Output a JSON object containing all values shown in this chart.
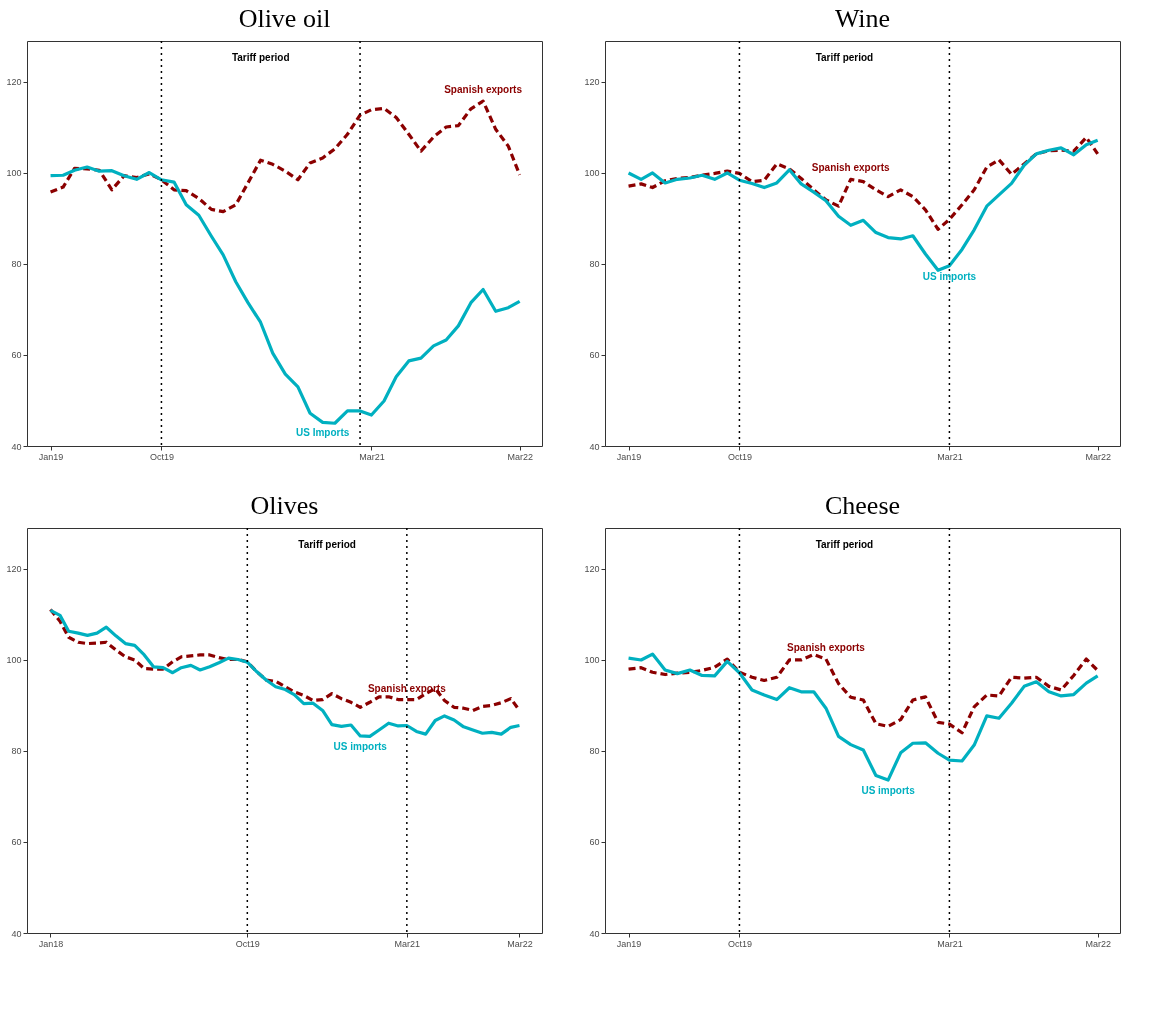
{
  "chart_data": [
    {
      "type": "line",
      "title": "Olive oil",
      "grid": false,
      "x": [
        "2019-01",
        "2019-02",
        "2019-03",
        "2019-04",
        "2019-05",
        "2019-06",
        "2019-07",
        "2019-08",
        "2019-09",
        "2019-10",
        "2019-11",
        "2019-12",
        "2020-01",
        "2020-02",
        "2020-03",
        "2020-04",
        "2020-05",
        "2020-06",
        "2020-07",
        "2020-08",
        "2020-09",
        "2020-10",
        "2020-11",
        "2020-12",
        "2021-01",
        "2021-02",
        "2021-03",
        "2021-04",
        "2021-05",
        "2021-06",
        "2021-07",
        "2021-08",
        "2021-09",
        "2021-10",
        "2021-11",
        "2021-12",
        "2022-01",
        "2022-02",
        "2022-03"
      ],
      "xlim": [
        "2018-11-04",
        "2022-04-25"
      ],
      "xticks": [
        {
          "value": "2019-01",
          "label": "Jan19"
        },
        {
          "value": "2019-10",
          "label": "Oct19"
        },
        {
          "value": "2021-03",
          "label": "Mar21"
        },
        {
          "value": "2022-03",
          "label": "Mar22"
        }
      ],
      "ylim": [
        40,
        129
      ],
      "yticks": [
        40,
        60,
        80,
        100,
        120
      ],
      "series": [
        {
          "color": "#8b0000",
          "line_style": "dashed",
          "values": [
            95.8,
            96.9,
            101.0,
            100.9,
            100.6,
            96.3,
            99.4,
            99.0,
            99.8,
            98.5,
            96.3,
            96.1,
            94.4,
            92.0,
            91.5,
            93.0,
            97.8,
            102.8,
            101.9,
            100.4,
            98.5,
            102.2,
            103.3,
            105.3,
            108.5,
            112.7,
            113.9,
            114.2,
            112.2,
            108.5,
            104.8,
            107.9,
            110.1,
            110.4,
            114.1,
            115.8,
            109.6,
            105.9,
            99.6
          ]
        },
        {
          "color": "#00b0c0",
          "line_style": "solid",
          "values": [
            99.4,
            99.5,
            100.6,
            101.3,
            100.4,
            100.5,
            99.4,
            98.6,
            100.1,
            98.5,
            98.0,
            93.0,
            90.7,
            86.1,
            82.0,
            76.1,
            71.5,
            67.2,
            60.4,
            55.8,
            53.0,
            47.2,
            45.2,
            45.0,
            47.7,
            47.7,
            46.8,
            49.9,
            55.2,
            58.7,
            59.3,
            62.0,
            63.3,
            66.4,
            71.5,
            74.4,
            69.6,
            70.4,
            71.8
          ]
        }
      ],
      "ref_lines": [
        {
          "axis": "x",
          "value": "2019-10",
          "line_style": "dotted",
          "color": "#000000"
        },
        {
          "axis": "x",
          "value": "2021-02",
          "line_style": "dotted",
          "color": "#000000"
        }
      ],
      "annotations": [
        "Tariff period",
        {
          "text": "Spanish exports",
          "x": "2021-12",
          "y": 115.8
        },
        {
          "text": "US Imports",
          "x": "2020-11",
          "y": 45.2
        }
      ]
    },
    {
      "type": "line",
      "title": "Wine",
      "grid": false,
      "x": [
        "2019-01",
        "2019-02",
        "2019-03",
        "2019-04",
        "2019-05",
        "2019-06",
        "2019-07",
        "2019-08",
        "2019-09",
        "2019-10",
        "2019-11",
        "2019-12",
        "2020-01",
        "2020-02",
        "2020-03",
        "2020-04",
        "2020-05",
        "2020-06",
        "2020-07",
        "2020-08",
        "2020-09",
        "2020-10",
        "2020-11",
        "2020-12",
        "2021-01",
        "2021-02",
        "2021-03",
        "2021-04",
        "2021-05",
        "2021-06",
        "2021-07",
        "2021-08",
        "2021-09",
        "2021-10",
        "2021-11",
        "2021-12",
        "2022-01",
        "2022-02",
        "2022-03"
      ],
      "xlim": [
        "2018-11-04",
        "2022-04-25"
      ],
      "xticks": [
        {
          "value": "2019-01",
          "label": "Jan19"
        },
        {
          "value": "2019-10",
          "label": "Oct19"
        },
        {
          "value": "2021-03",
          "label": "Mar21"
        },
        {
          "value": "2022-03",
          "label": "Mar22"
        }
      ],
      "ylim": [
        40,
        129
      ],
      "yticks": [
        40,
        60,
        80,
        100,
        120
      ],
      "series": [
        {
          "color": "#8b0000",
          "line_style": "dashed",
          "values": [
            97.1,
            97.6,
            96.8,
            98.3,
            98.8,
            99.0,
            99.5,
            99.9,
            100.4,
            99.9,
            98.1,
            98.4,
            102.0,
            100.9,
            98.8,
            96.3,
            94.1,
            92.7,
            98.6,
            98.1,
            96.3,
            94.8,
            96.3,
            94.8,
            91.9,
            87.6,
            89.8,
            93.0,
            96.3,
            101.3,
            102.9,
            99.7,
            102.0,
            104.2,
            104.9,
            105.0,
            104.8,
            107.8,
            104.2
          ]
        },
        {
          "color": "#00b0c0",
          "line_style": "solid",
          "values": [
            100.0,
            98.6,
            100.0,
            97.8,
            98.6,
            98.9,
            99.5,
            98.6,
            100.0,
            98.4,
            97.7,
            96.8,
            97.8,
            100.7,
            97.6,
            95.8,
            93.9,
            90.5,
            88.5,
            89.6,
            86.9,
            85.8,
            85.5,
            86.2,
            82.2,
            78.6,
            79.6,
            83.2,
            87.5,
            92.7,
            95.2,
            97.7,
            101.7,
            104.2,
            105.0,
            105.5,
            104.0,
            106.2,
            107.2
          ]
        }
      ],
      "ref_lines": [
        {
          "axis": "x",
          "value": "2019-10",
          "line_style": "dotted",
          "color": "#000000"
        },
        {
          "axis": "x",
          "value": "2021-03",
          "line_style": "dotted",
          "color": "#000000"
        }
      ],
      "annotations": [
        "Tariff period",
        {
          "text": "Spanish exports",
          "x": "2020-07",
          "y": 98.6
        },
        {
          "text": "US imports",
          "x": "2021-03",
          "y": 79.6
        }
      ]
    },
    {
      "type": "line",
      "title": "Olives",
      "grid": false,
      "x": [
        "2018-01",
        "2018-02",
        "2018-03",
        "2018-04",
        "2018-05",
        "2018-06",
        "2018-07",
        "2018-08",
        "2018-09",
        "2018-10",
        "2018-11",
        "2018-12",
        "2019-01",
        "2019-02",
        "2019-03",
        "2019-04",
        "2019-05",
        "2019-06",
        "2019-07",
        "2019-08",
        "2019-09",
        "2019-10",
        "2019-11",
        "2019-12",
        "2020-01",
        "2020-02",
        "2020-03",
        "2020-04",
        "2020-05",
        "2020-06",
        "2020-07",
        "2020-08",
        "2020-09",
        "2020-10",
        "2020-11",
        "2020-12",
        "2021-01",
        "2021-02",
        "2021-03",
        "2021-04",
        "2021-05",
        "2021-06",
        "2021-07",
        "2021-08",
        "2021-09",
        "2021-10",
        "2021-11",
        "2021-12",
        "2022-01",
        "2022-02",
        "2022-03"
      ],
      "xlim": [
        "2017-10-17",
        "2022-05-13"
      ],
      "xticks": [
        {
          "value": "2018-01",
          "label": "Jan18"
        },
        {
          "value": "2019-10",
          "label": "Oct19"
        },
        {
          "value": "2021-03",
          "label": "Mar21"
        },
        {
          "value": "2022-03",
          "label": "Mar22"
        }
      ],
      "ylim": [
        40,
        129
      ],
      "yticks": [
        40,
        60,
        80,
        100,
        120
      ],
      "series": [
        {
          "color": "#8b0000",
          "line_style": "dashed",
          "values": [
            111.1,
            108.5,
            105.0,
            103.9,
            103.6,
            103.7,
            103.9,
            102.2,
            100.7,
            100.0,
            98.1,
            98.0,
            98.0,
            99.6,
            100.7,
            100.9,
            101.1,
            101.1,
            100.5,
            100.1,
            100.1,
            99.6,
            97.4,
            95.6,
            95.3,
            94.1,
            93.0,
            92.2,
            91.1,
            91.3,
            92.6,
            91.5,
            90.7,
            89.6,
            90.7,
            91.9,
            91.9,
            91.3,
            91.3,
            91.3,
            92.6,
            93.7,
            91.1,
            89.6,
            89.4,
            88.9,
            89.8,
            90.0,
            90.6,
            91.5,
            88.9
          ]
        },
        {
          "color": "#00b0c0",
          "line_style": "solid",
          "values": [
            110.9,
            109.8,
            106.3,
            105.9,
            105.4,
            105.9,
            107.2,
            105.3,
            103.6,
            103.2,
            101.1,
            98.5,
            98.3,
            97.2,
            98.3,
            98.8,
            97.8,
            98.5,
            99.4,
            100.4,
            100.1,
            99.5,
            97.4,
            95.6,
            94.1,
            93.5,
            92.4,
            90.4,
            90.5,
            88.9,
            85.8,
            85.4,
            85.7,
            83.3,
            83.2,
            84.6,
            86.1,
            85.5,
            85.6,
            84.3,
            83.7,
            86.7,
            87.7,
            86.8,
            85.3,
            84.6,
            83.9,
            84.1,
            83.7,
            85.2,
            85.6
          ]
        }
      ],
      "ref_lines": [
        {
          "axis": "x",
          "value": "2019-10",
          "line_style": "dotted",
          "color": "#000000"
        },
        {
          "axis": "x",
          "value": "2021-03",
          "line_style": "dotted",
          "color": "#000000"
        }
      ],
      "annotations": [
        "Tariff period",
        {
          "text": "Spanish exports",
          "x": "2021-03",
          "y": 91.3
        },
        {
          "text": "US imports",
          "x": "2020-10",
          "y": 83.3
        }
      ]
    },
    {
      "type": "line",
      "title": "Cheese",
      "grid": false,
      "x": [
        "2019-01",
        "2019-02",
        "2019-03",
        "2019-04",
        "2019-05",
        "2019-06",
        "2019-07",
        "2019-08",
        "2019-09",
        "2019-10",
        "2019-11",
        "2019-12",
        "2020-01",
        "2020-02",
        "2020-03",
        "2020-04",
        "2020-05",
        "2020-06",
        "2020-07",
        "2020-08",
        "2020-09",
        "2020-10",
        "2020-11",
        "2020-12",
        "2021-01",
        "2021-02",
        "2021-03",
        "2021-04",
        "2021-05",
        "2021-06",
        "2021-07",
        "2021-08",
        "2021-09",
        "2021-10",
        "2021-11",
        "2021-12",
        "2022-01",
        "2022-02",
        "2022-03"
      ],
      "xlim": [
        "2018-11-04",
        "2022-04-25"
      ],
      "xticks": [
        {
          "value": "2019-01",
          "label": "Jan19"
        },
        {
          "value": "2019-10",
          "label": "Oct19"
        },
        {
          "value": "2021-03",
          "label": "Mar21"
        },
        {
          "value": "2022-03",
          "label": "Mar22"
        }
      ],
      "ylim": [
        40,
        129
      ],
      "yticks": [
        40,
        60,
        80,
        100,
        120
      ],
      "series": [
        {
          "color": "#8b0000",
          "line_style": "dashed",
          "values": [
            98.0,
            98.3,
            97.3,
            96.8,
            97.1,
            97.3,
            97.7,
            98.4,
            100.2,
            97.3,
            96.2,
            95.5,
            96.2,
            100.0,
            100.0,
            101.2,
            100.2,
            94.8,
            91.8,
            91.2,
            86.0,
            85.4,
            86.9,
            91.2,
            91.9,
            86.3,
            85.9,
            84.0,
            89.7,
            92.3,
            92.1,
            96.2,
            96.0,
            96.2,
            94.2,
            93.4,
            96.6,
            100.2,
            97.7
          ]
        },
        {
          "color": "#00b0c0",
          "line_style": "solid",
          "values": [
            100.4,
            100.0,
            101.3,
            97.8,
            97.0,
            97.8,
            96.6,
            96.5,
            99.7,
            97.2,
            93.4,
            92.3,
            91.3,
            93.9,
            93.0,
            93.0,
            89.4,
            83.2,
            81.4,
            80.2,
            74.6,
            73.6,
            79.6,
            81.7,
            81.8,
            79.5,
            78.0,
            77.8,
            81.3,
            87.7,
            87.2,
            90.5,
            94.2,
            95.2,
            93.0,
            92.1,
            92.4,
            94.9,
            96.5
          ]
        }
      ],
      "ref_lines": [
        {
          "axis": "x",
          "value": "2019-10",
          "line_style": "dotted",
          "color": "#000000"
        },
        {
          "axis": "x",
          "value": "2021-03",
          "line_style": "dotted",
          "color": "#000000"
        }
      ],
      "annotations": [
        "Tariff period",
        {
          "text": "Spanish exports",
          "x": "2020-05",
          "y": 100.2
        },
        {
          "text": "US imports",
          "x": "2020-10",
          "y": 73.6
        }
      ]
    }
  ]
}
